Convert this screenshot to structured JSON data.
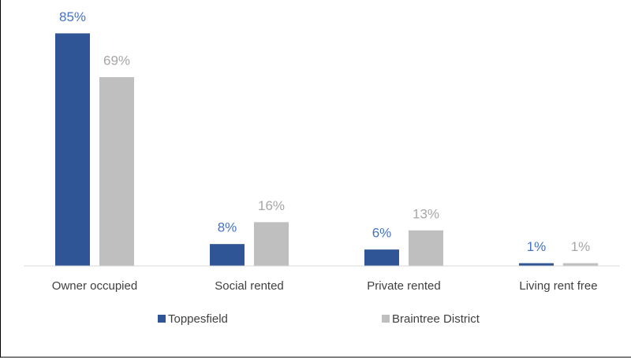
{
  "chart_data": {
    "type": "bar",
    "categories": [
      "Owner occupied",
      "Social rented",
      "Private rented",
      "Living rent free"
    ],
    "series": [
      {
        "name": "Toppesfield",
        "color": "#2f5597",
        "label_color": "#4472c4",
        "values": [
          85,
          8,
          6,
          1
        ],
        "value_labels": [
          "85%",
          "8%",
          "6%",
          "1%"
        ]
      },
      {
        "name": "Braintree District",
        "color": "#bfbfbf",
        "label_color": "#a6a6a6",
        "values": [
          69,
          16,
          13,
          1
        ],
        "value_labels": [
          "69%",
          "16%",
          "13%",
          "1%"
        ]
      }
    ],
    "ylim": [
      0,
      90
    ],
    "legend": "bottom"
  }
}
